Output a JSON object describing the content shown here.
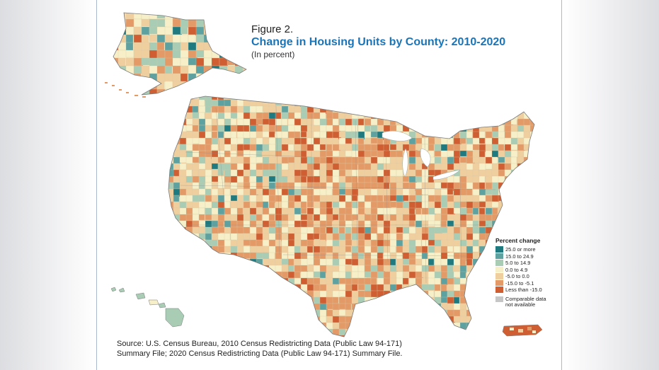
{
  "figure": {
    "label": "Figure 2.",
    "title": "Change in Housing Units by County: 2010-2020",
    "subtitle": "(In percent)"
  },
  "legend": {
    "title": "Percent change",
    "classes": [
      {
        "label": "25.0 or more",
        "color": "#1f7a80"
      },
      {
        "label": "15.0 to 24.9",
        "color": "#5da2a0"
      },
      {
        "label": "5.0 to 14.9",
        "color": "#a8ccb4"
      },
      {
        "label": "0.0 to 4.9",
        "color": "#f6efc7"
      },
      {
        "label": "-5.0 to 0.0",
        "color": "#f0cf9f"
      },
      {
        "label": "-15.0 to -5.1",
        "color": "#e39a67"
      },
      {
        "label": "Less than -15.0",
        "color": "#cf5f32"
      }
    ],
    "not_available": {
      "label": "Comparable data not available",
      "color": "#c6c6c6"
    }
  },
  "source": {
    "line1": "Source: U.S. Census Bureau, 2010 Census Redistricting Data (Public Law 94-171)",
    "line2": "Summary File; 2020 Census Redistricting Data (Public Law 94-171) Summary File."
  }
}
